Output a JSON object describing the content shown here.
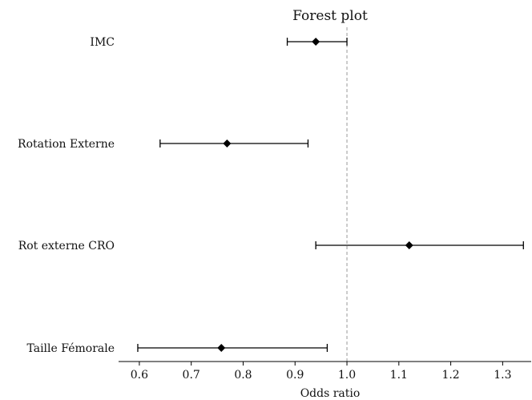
{
  "chart_data": {
    "type": "forest",
    "title": "Forest plot",
    "xlabel": "Odds ratio",
    "ylabel": "",
    "xlim": [
      0.56,
      1.355
    ],
    "xticks": [
      0.6,
      0.7,
      0.8,
      0.9,
      1.0,
      1.1,
      1.2,
      1.3
    ],
    "xtick_labels": [
      "0.6",
      "0.7",
      "0.8",
      "0.9",
      "1.0",
      "1.1",
      "1.2",
      "1.3"
    ],
    "reference_line": 1.0,
    "grid": false,
    "marker": "diamond",
    "colors": {
      "marker": "#000000",
      "reference_line": "#999999",
      "axis": "#000000"
    },
    "rows": [
      {
        "label": "IMC",
        "or": 0.94,
        "ci_low": 0.885,
        "ci_high": 1.0
      },
      {
        "label": "Rotation Externe",
        "or": 0.769,
        "ci_low": 0.64,
        "ci_high": 0.925
      },
      {
        "label": "Rot externe CRO",
        "or": 1.12,
        "ci_low": 0.94,
        "ci_high": 1.34
      },
      {
        "label": "Taille Fémorale",
        "or": 0.758,
        "ci_low": 0.597,
        "ci_high": 0.962
      }
    ]
  }
}
